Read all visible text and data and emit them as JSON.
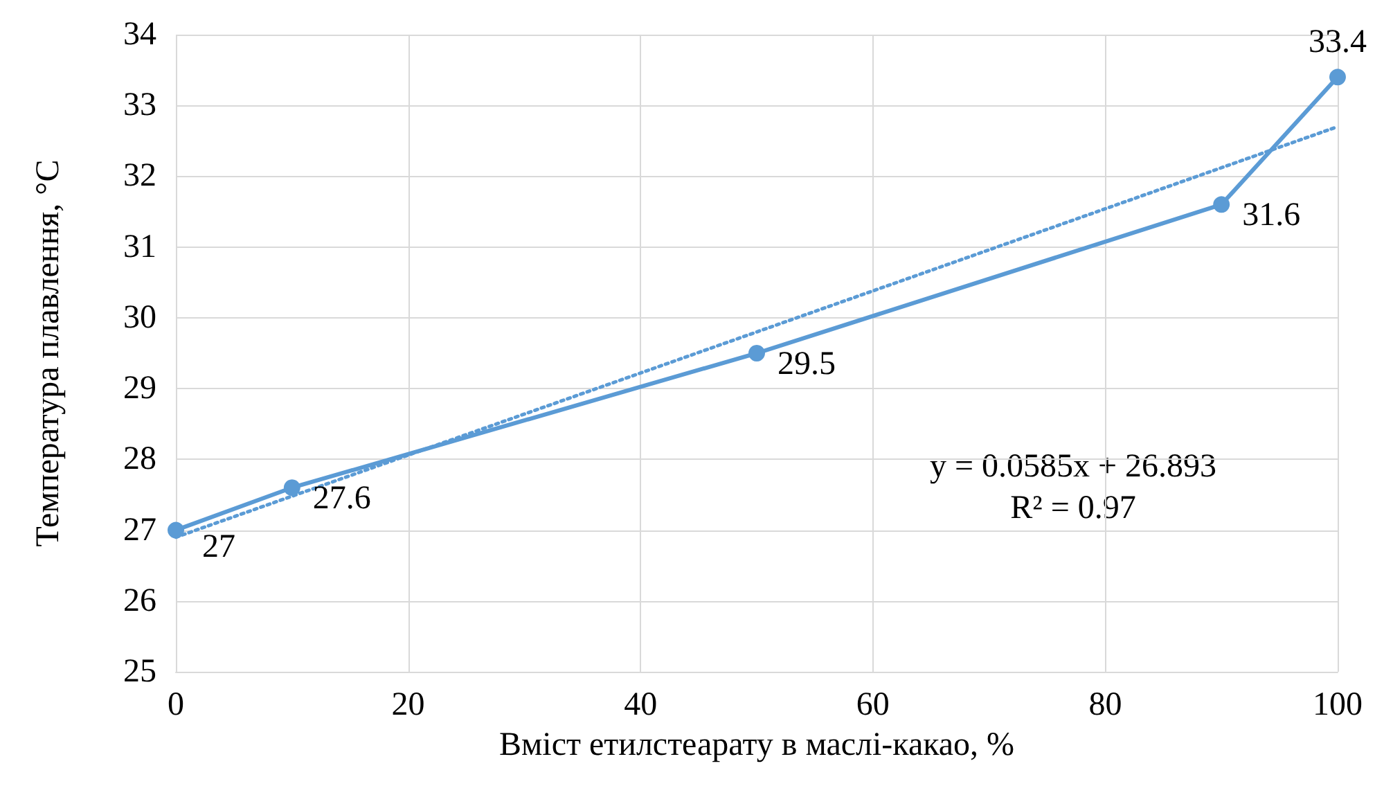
{
  "chart_data": {
    "type": "line",
    "xlabel": "Вміст етилстеарату в маслі-какао, %",
    "ylabel": "Температура плавлення, °C",
    "x": [
      0,
      10,
      50,
      90,
      100
    ],
    "series": [
      {
        "color": "#5b9bd5",
        "values": [
          27,
          27.6,
          29.5,
          31.6,
          33.4
        ],
        "value_labels": [
          "27",
          "27.6",
          "29.5",
          "31.6",
          "33.4"
        ],
        "marker": "circle",
        "line_style": "solid"
      },
      {
        "color": "#5b9bd5",
        "x": [
          0,
          100
        ],
        "values": [
          26.9,
          32.7
        ],
        "marker": "none",
        "line_style": "dotted"
      }
    ],
    "xlim": [
      0,
      100
    ],
    "xticks": [
      0,
      20,
      40,
      60,
      80,
      100
    ],
    "ylim": [
      25,
      34
    ],
    "yticks": [
      25,
      26,
      27,
      28,
      29,
      30,
      31,
      32,
      33,
      34
    ],
    "grid": true,
    "annotations": [
      "y = 0.0585x + 26.893",
      "R² = 0.97"
    ]
  }
}
